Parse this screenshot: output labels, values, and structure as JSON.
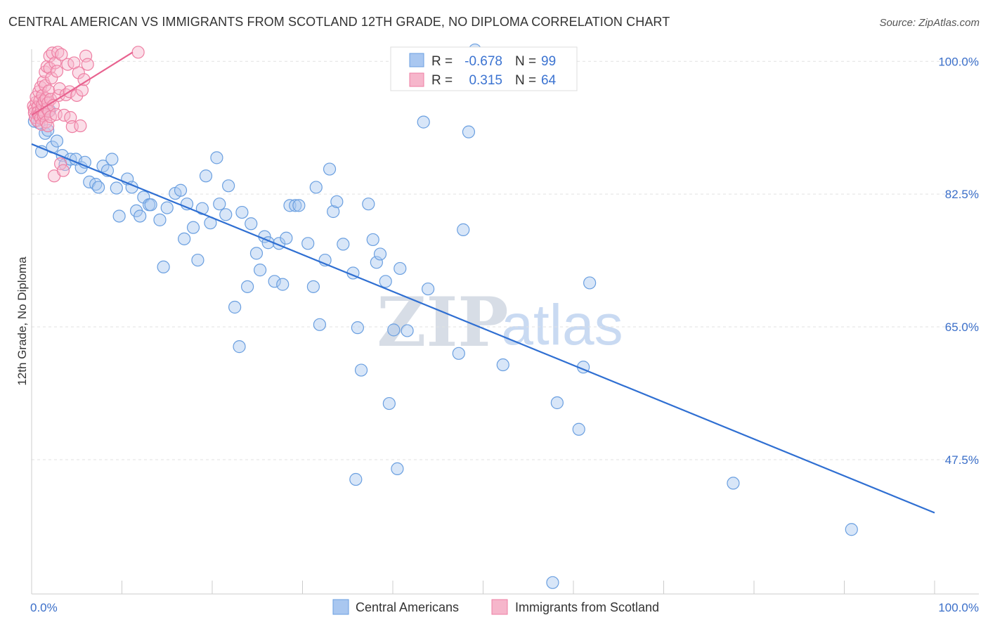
{
  "title": "CENTRAL AMERICAN VS IMMIGRANTS FROM SCOTLAND 12TH GRADE, NO DIPLOMA CORRELATION CHART",
  "source": "Source: ZipAtlas.com",
  "watermark": {
    "left": "ZIP",
    "right": "atlas"
  },
  "stats": [
    {
      "r_label": "R =",
      "r_value": "-0.678",
      "n_label": "N =",
      "n_value": "99",
      "color": "#3b73d1"
    },
    {
      "r_label": "R =",
      "r_value": "0.315",
      "n_label": "N =",
      "n_value": "64",
      "color": "#3b73d1"
    }
  ],
  "legend": [
    {
      "label": "Central Americans",
      "color": "#a9c7f0"
    },
    {
      "label": "Immigrants from Scotland",
      "color": "#f6b6cb"
    }
  ],
  "chart_data": {
    "type": "scatter",
    "title": "CENTRAL AMERICAN VS IMMIGRANTS FROM SCOTLAND 12TH GRADE, NO DIPLOMA CORRELATION CHART",
    "xlabel": "",
    "ylabel": "12th Grade, No Diploma",
    "xlim": [
      0,
      100
    ],
    "ylim": [
      29.8,
      101.6
    ],
    "x_tick_labels": [
      "0.0%",
      "100.0%"
    ],
    "y_ticks": [
      47.5,
      65.0,
      82.5,
      100.0
    ],
    "y_tick_labels": [
      "47.5%",
      "65.0%",
      "82.5%",
      "100.0%"
    ],
    "grid": true,
    "legend_position": "bottom",
    "series": [
      {
        "name": "Central Americans",
        "color": "#6a9fe0",
        "trend": {
          "x": [
            0,
            100
          ],
          "y": [
            89.1,
            40.5
          ],
          "color": "#2f6fd2"
        },
        "points": [
          [
            0.8,
            91.9
          ],
          [
            1.4,
            93.0
          ],
          [
            1.5,
            90.5
          ],
          [
            1.8,
            90.9
          ],
          [
            2.3,
            88.7
          ],
          [
            2.8,
            89.5
          ],
          [
            3.4,
            87.6
          ],
          [
            3.7,
            86.4
          ],
          [
            4.3,
            87.1
          ],
          [
            4.9,
            87.1
          ],
          [
            5.5,
            86.0
          ],
          [
            5.9,
            86.7
          ],
          [
            6.4,
            84.1
          ],
          [
            7.1,
            83.8
          ],
          [
            7.4,
            83.4
          ],
          [
            7.9,
            86.2
          ],
          [
            8.4,
            85.6
          ],
          [
            8.9,
            87.1
          ],
          [
            9.4,
            83.3
          ],
          [
            9.7,
            79.6
          ],
          [
            10.6,
            84.5
          ],
          [
            11.1,
            83.4
          ],
          [
            11.6,
            80.3
          ],
          [
            12.0,
            79.6
          ],
          [
            12.4,
            82.1
          ],
          [
            13.0,
            81.1
          ],
          [
            13.2,
            81.1
          ],
          [
            14.2,
            79.1
          ],
          [
            14.6,
            72.9
          ],
          [
            15.0,
            80.7
          ],
          [
            15.9,
            82.6
          ],
          [
            16.5,
            83.0
          ],
          [
            16.9,
            76.6
          ],
          [
            17.2,
            81.2
          ],
          [
            17.9,
            78.1
          ],
          [
            18.4,
            73.8
          ],
          [
            18.9,
            80.6
          ],
          [
            19.3,
            84.9
          ],
          [
            19.8,
            78.7
          ],
          [
            20.5,
            87.3
          ],
          [
            20.8,
            81.2
          ],
          [
            21.5,
            79.8
          ],
          [
            21.8,
            83.6
          ],
          [
            22.5,
            67.6
          ],
          [
            23.0,
            62.4
          ],
          [
            23.3,
            80.1
          ],
          [
            23.9,
            70.3
          ],
          [
            24.3,
            78.6
          ],
          [
            24.9,
            74.7
          ],
          [
            25.3,
            72.5
          ],
          [
            25.8,
            76.9
          ],
          [
            26.2,
            76.1
          ],
          [
            26.9,
            71.0
          ],
          [
            27.4,
            76.0
          ],
          [
            27.8,
            70.6
          ],
          [
            28.2,
            76.7
          ],
          [
            28.6,
            81.0
          ],
          [
            29.2,
            81.0
          ],
          [
            29.6,
            81.0
          ],
          [
            30.6,
            76.0
          ],
          [
            31.2,
            70.3
          ],
          [
            31.5,
            83.4
          ],
          [
            31.9,
            65.3
          ],
          [
            32.5,
            73.8
          ],
          [
            33.0,
            85.8
          ],
          [
            33.4,
            80.2
          ],
          [
            33.8,
            81.5
          ],
          [
            34.5,
            75.9
          ],
          [
            35.6,
            72.1
          ],
          [
            35.9,
            44.9
          ],
          [
            36.1,
            64.9
          ],
          [
            36.5,
            59.3
          ],
          [
            37.3,
            81.2
          ],
          [
            37.8,
            76.5
          ],
          [
            38.2,
            73.5
          ],
          [
            38.6,
            74.6
          ],
          [
            39.2,
            71.0
          ],
          [
            39.6,
            54.9
          ],
          [
            40.1,
            64.6
          ],
          [
            40.5,
            46.3
          ],
          [
            40.8,
            72.7
          ],
          [
            41.6,
            64.5
          ],
          [
            43.4,
            92.0
          ],
          [
            43.9,
            70.0
          ],
          [
            47.3,
            61.5
          ],
          [
            47.8,
            77.8
          ],
          [
            48.4,
            90.7
          ],
          [
            49.1,
            101.5
          ],
          [
            52.2,
            60.0
          ],
          [
            57.7,
            31.3
          ],
          [
            58.2,
            55.0
          ],
          [
            60.6,
            51.5
          ],
          [
            61.1,
            59.7
          ],
          [
            61.8,
            70.8
          ],
          [
            77.7,
            44.4
          ],
          [
            90.8,
            38.3
          ],
          [
            0.3,
            92.1
          ],
          [
            2.0,
            93.5
          ],
          [
            1.1,
            88.1
          ]
        ]
      },
      {
        "name": "Immigrants from Scotland",
        "color": "#ee7fa3",
        "trend": {
          "x": [
            0,
            11.2
          ],
          "y": [
            92.9,
            101.2
          ],
          "color": "#e8628f"
        },
        "points": [
          [
            0.2,
            94.1
          ],
          [
            0.3,
            93.7
          ],
          [
            0.3,
            93.2
          ],
          [
            0.4,
            92.6
          ],
          [
            0.5,
            94.6
          ],
          [
            0.5,
            95.3
          ],
          [
            0.6,
            92.2
          ],
          [
            0.7,
            94.0
          ],
          [
            0.7,
            93.3
          ],
          [
            0.8,
            96.0
          ],
          [
            0.8,
            92.9
          ],
          [
            0.9,
            94.8
          ],
          [
            1.0,
            92.5
          ],
          [
            1.0,
            96.6
          ],
          [
            1.1,
            93.6
          ],
          [
            1.1,
            91.7
          ],
          [
            1.2,
            94.3
          ],
          [
            1.2,
            95.5
          ],
          [
            1.3,
            92.8
          ],
          [
            1.3,
            97.3
          ],
          [
            1.4,
            94.8
          ],
          [
            1.4,
            93.1
          ],
          [
            1.5,
            96.8
          ],
          [
            1.5,
            98.6
          ],
          [
            1.6,
            92.0
          ],
          [
            1.6,
            95.1
          ],
          [
            1.7,
            93.8
          ],
          [
            1.7,
            99.3
          ],
          [
            1.8,
            94.5
          ],
          [
            1.8,
            91.5
          ],
          [
            1.9,
            96.1
          ],
          [
            1.9,
            93.4
          ],
          [
            2.0,
            99.1
          ],
          [
            2.0,
            100.7
          ],
          [
            2.1,
            95.0
          ],
          [
            2.1,
            92.7
          ],
          [
            2.2,
            97.8
          ],
          [
            2.3,
            101.1
          ],
          [
            2.4,
            94.2
          ],
          [
            2.5,
            84.9
          ],
          [
            2.6,
            99.8
          ],
          [
            2.7,
            93.0
          ],
          [
            2.8,
            98.7
          ],
          [
            2.9,
            101.2
          ],
          [
            3.0,
            95.5
          ],
          [
            3.1,
            96.4
          ],
          [
            3.2,
            86.5
          ],
          [
            3.3,
            100.9
          ],
          [
            3.5,
            85.6
          ],
          [
            3.6,
            92.9
          ],
          [
            3.8,
            95.6
          ],
          [
            4.0,
            99.6
          ],
          [
            4.2,
            96.0
          ],
          [
            4.3,
            92.6
          ],
          [
            4.5,
            91.4
          ],
          [
            4.7,
            99.8
          ],
          [
            5.0,
            95.5
          ],
          [
            5.2,
            98.5
          ],
          [
            5.4,
            91.5
          ],
          [
            5.6,
            96.2
          ],
          [
            5.8,
            97.6
          ],
          [
            6.0,
            100.7
          ],
          [
            6.2,
            99.6
          ],
          [
            11.8,
            101.2
          ]
        ]
      }
    ]
  }
}
